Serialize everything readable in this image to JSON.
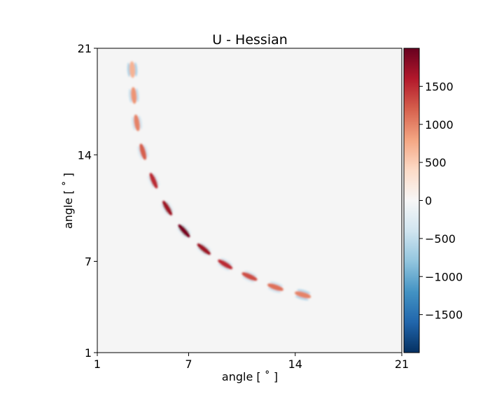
{
  "chart_data": {
    "type": "heatmap",
    "title": "U - Hessian",
    "xlabel": "angle [ ˚ ]",
    "ylabel": "angle [ ˚ ]",
    "xlim": [
      1,
      21
    ],
    "ylim": [
      1,
      21
    ],
    "x_ticks": [
      "1",
      "7",
      "14",
      "21"
    ],
    "y_ticks": [
      "1",
      "7",
      "14",
      "21"
    ],
    "x_tick_values": [
      1,
      7,
      14,
      21
    ],
    "y_tick_values": [
      1,
      7,
      14,
      21
    ],
    "background_value": 0,
    "colormap": "RdBu_r",
    "colorbar": {
      "min": -2000,
      "max": 2000,
      "ticks": [
        -1500,
        -1000,
        -500,
        0,
        500,
        1000,
        1500
      ],
      "tick_labels": [
        "−1500",
        "−1000",
        "−500",
        "0",
        "500",
        "1000",
        "1500"
      ]
    },
    "blobs": [
      {
        "x": 3.3,
        "y": 19.6,
        "value": 700,
        "side_value": -700
      },
      {
        "x": 3.4,
        "y": 17.9,
        "value": 900,
        "side_value": -500
      },
      {
        "x": 3.6,
        "y": 16.1,
        "value": 1000,
        "side_value": -400
      },
      {
        "x": 4.0,
        "y": 14.2,
        "value": 1200,
        "side_value": -300
      },
      {
        "x": 4.7,
        "y": 12.3,
        "value": 1500,
        "side_value": -200
      },
      {
        "x": 5.6,
        "y": 10.5,
        "value": 1700,
        "side_value": -200
      },
      {
        "x": 6.7,
        "y": 9.0,
        "value": 1900,
        "side_value": -200
      },
      {
        "x": 8.0,
        "y": 7.8,
        "value": 1700,
        "side_value": -200
      },
      {
        "x": 9.4,
        "y": 6.8,
        "value": 1500,
        "side_value": -300
      },
      {
        "x": 11.0,
        "y": 6.0,
        "value": 1300,
        "side_value": -300
      },
      {
        "x": 12.7,
        "y": 5.3,
        "value": 1100,
        "side_value": -400
      },
      {
        "x": 14.5,
        "y": 4.8,
        "value": 1000,
        "side_value": -600
      }
    ]
  }
}
